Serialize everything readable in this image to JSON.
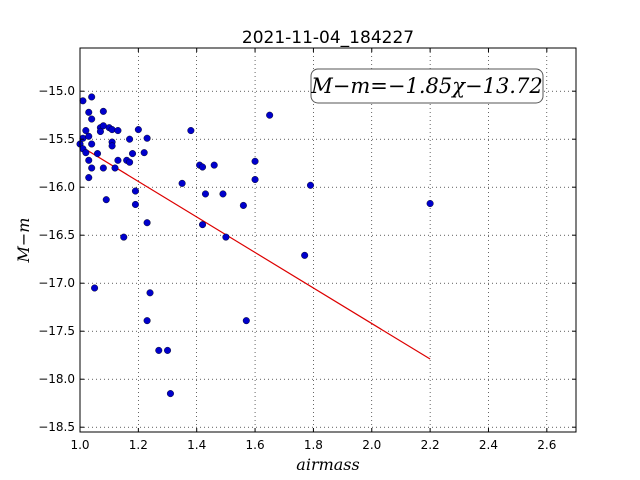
{
  "chart_data": {
    "type": "scatter",
    "title": "2021-11-04_184227",
    "xlabel": "airmass",
    "ylabel": "M−m",
    "xlim": [
      1.0,
      2.7
    ],
    "ylim": [
      -18.55,
      -14.55
    ],
    "x_ticks": [
      1.0,
      1.2,
      1.4,
      1.6,
      1.8,
      2.0,
      2.2,
      2.4,
      2.6
    ],
    "x_tick_labels": [
      "1.0",
      "1.2",
      "1.4",
      "1.6",
      "1.8",
      "2.0",
      "2.2",
      "2.4",
      "2.6"
    ],
    "y_ticks": [
      -15.0,
      -15.5,
      -16.0,
      -16.5,
      -17.0,
      -17.5,
      -18.0,
      -18.5
    ],
    "y_tick_labels": [
      "−15.0",
      "−15.5",
      "−16.0",
      "−16.5",
      "−17.0",
      "−17.5",
      "−18.0",
      "−18.5"
    ],
    "grid": true,
    "annotation": "M−m=−1.85χ−13.72",
    "point_color": "#0000cc",
    "line_color": "#dd0000",
    "fit_line": {
      "x": [
        1.0,
        2.2
      ],
      "y": [
        -15.57,
        -17.79
      ]
    },
    "points": [
      {
        "x": 1.0,
        "y": -15.55
      },
      {
        "x": 1.01,
        "y": -15.49
      },
      {
        "x": 1.01,
        "y": -15.6
      },
      {
        "x": 1.01,
        "y": -15.1
      },
      {
        "x": 1.02,
        "y": -15.41
      },
      {
        "x": 1.02,
        "y": -15.64
      },
      {
        "x": 1.03,
        "y": -15.47
      },
      {
        "x": 1.03,
        "y": -15.72
      },
      {
        "x": 1.03,
        "y": -15.9
      },
      {
        "x": 1.03,
        "y": -15.22
      },
      {
        "x": 1.04,
        "y": -15.29
      },
      {
        "x": 1.04,
        "y": -15.06
      },
      {
        "x": 1.04,
        "y": -15.8
      },
      {
        "x": 1.04,
        "y": -15.55
      },
      {
        "x": 1.05,
        "y": -17.05
      },
      {
        "x": 1.06,
        "y": -15.65
      },
      {
        "x": 1.07,
        "y": -15.38
      },
      {
        "x": 1.07,
        "y": -15.42
      },
      {
        "x": 1.08,
        "y": -15.21
      },
      {
        "x": 1.08,
        "y": -15.36
      },
      {
        "x": 1.08,
        "y": -15.8
      },
      {
        "x": 1.09,
        "y": -16.13
      },
      {
        "x": 1.1,
        "y": -15.38
      },
      {
        "x": 1.11,
        "y": -15.4
      },
      {
        "x": 1.11,
        "y": -15.53
      },
      {
        "x": 1.11,
        "y": -15.57
      },
      {
        "x": 1.12,
        "y": -15.8
      },
      {
        "x": 1.13,
        "y": -15.41
      },
      {
        "x": 1.13,
        "y": -15.72
      },
      {
        "x": 1.15,
        "y": -16.52
      },
      {
        "x": 1.16,
        "y": -15.72
      },
      {
        "x": 1.17,
        "y": -15.5
      },
      {
        "x": 1.17,
        "y": -15.74
      },
      {
        "x": 1.18,
        "y": -15.65
      },
      {
        "x": 1.19,
        "y": -16.04
      },
      {
        "x": 1.19,
        "y": -16.18
      },
      {
        "x": 1.2,
        "y": -15.4
      },
      {
        "x": 1.22,
        "y": -15.64
      },
      {
        "x": 1.23,
        "y": -15.49
      },
      {
        "x": 1.23,
        "y": -16.37
      },
      {
        "x": 1.24,
        "y": -17.1
      },
      {
        "x": 1.23,
        "y": -17.39
      },
      {
        "x": 1.27,
        "y": -17.7
      },
      {
        "x": 1.3,
        "y": -17.7
      },
      {
        "x": 1.31,
        "y": -18.15
      },
      {
        "x": 1.35,
        "y": -15.96
      },
      {
        "x": 1.38,
        "y": -15.41
      },
      {
        "x": 1.41,
        "y": -15.77
      },
      {
        "x": 1.42,
        "y": -15.79
      },
      {
        "x": 1.42,
        "y": -16.39
      },
      {
        "x": 1.43,
        "y": -16.07
      },
      {
        "x": 1.46,
        "y": -15.77
      },
      {
        "x": 1.49,
        "y": -16.07
      },
      {
        "x": 1.5,
        "y": -16.52
      },
      {
        "x": 1.56,
        "y": -16.19
      },
      {
        "x": 1.57,
        "y": -17.39
      },
      {
        "x": 1.6,
        "y": -15.73
      },
      {
        "x": 1.6,
        "y": -15.92
      },
      {
        "x": 1.65,
        "y": -15.25
      },
      {
        "x": 1.77,
        "y": -16.71
      },
      {
        "x": 1.79,
        "y": -15.98
      },
      {
        "x": 2.2,
        "y": -16.17
      }
    ]
  }
}
